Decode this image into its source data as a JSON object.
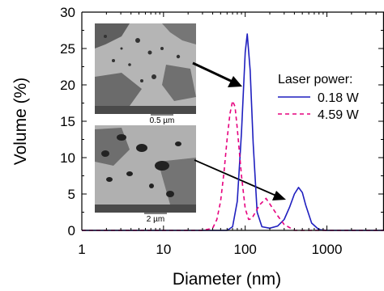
{
  "chart_data": {
    "type": "line",
    "xlabel": "Diameter (nm)",
    "ylabel": "Volume (%)",
    "xscale": "log",
    "xlim": [
      1,
      5000
    ],
    "ylim": [
      0,
      30
    ],
    "x_ticks": [
      1,
      10,
      100,
      1000
    ],
    "x_tick_labels": [
      "1",
      "10",
      "100",
      "1000"
    ],
    "y_ticks": [
      0,
      5,
      10,
      15,
      20,
      25,
      30
    ],
    "y_tick_labels": [
      "0",
      "5",
      "10",
      "15",
      "20",
      "25",
      "30"
    ],
    "grid": false,
    "legend": {
      "title": "Laser power:",
      "placement": "top-right"
    },
    "series": [
      {
        "name": "0.18 W",
        "color": "#1f1fbf",
        "style": "solid",
        "x": [
          1,
          60,
          70,
          80,
          90,
          100,
          106,
          115,
          125,
          140,
          160,
          200,
          250,
          300,
          350,
          400,
          450,
          500,
          550,
          650,
          800,
          1000,
          5000
        ],
        "y": [
          0,
          0,
          0.5,
          4,
          13.5,
          24.5,
          27,
          22,
          12,
          2.5,
          0.5,
          0.3,
          0.6,
          1.5,
          3.2,
          5,
          5.9,
          5.2,
          3.5,
          1,
          0.1,
          0,
          0
        ]
      },
      {
        "name": "4.59 W",
        "color": "#e6007e",
        "style": "dashed",
        "x": [
          1,
          30,
          40,
          45,
          50,
          55,
          60,
          65,
          70,
          75,
          80,
          90,
          100,
          110,
          120,
          150,
          180,
          250,
          300,
          400,
          5000
        ],
        "y": [
          0,
          0,
          0.3,
          1.5,
          4,
          8,
          12.5,
          16,
          17.8,
          17,
          14,
          7.5,
          3,
          1.5,
          1.6,
          3.5,
          4.4,
          2,
          0.8,
          0,
          0
        ]
      }
    ]
  },
  "insets": [
    {
      "scale_label": "0.5 µm"
    },
    {
      "scale_label": "2 µm"
    }
  ]
}
